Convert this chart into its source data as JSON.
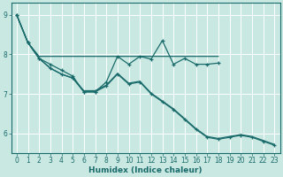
{
  "xlabel": "Humidex (Indice chaleur)",
  "xlim": [
    -0.5,
    23.5
  ],
  "ylim": [
    5.5,
    9.3
  ],
  "yticks": [
    6,
    7,
    8,
    9
  ],
  "xticks": [
    0,
    1,
    2,
    3,
    4,
    5,
    6,
    7,
    8,
    9,
    10,
    11,
    12,
    13,
    14,
    15,
    16,
    17,
    18,
    19,
    20,
    21,
    22,
    23
  ],
  "background_color": "#c9e8e2",
  "grid_color": "#ffffff",
  "line_color": "#1a6b6b",
  "line1_no_marker": {
    "x": [
      0,
      1,
      2,
      3,
      4,
      5,
      6,
      7,
      8,
      9,
      10,
      11,
      12,
      13,
      14,
      15,
      16,
      17,
      18
    ],
    "y": [
      9.0,
      8.3,
      7.95,
      7.95,
      7.95,
      7.95,
      7.95,
      7.95,
      7.95,
      7.95,
      7.95,
      7.95,
      7.95,
      7.95,
      7.95,
      7.95,
      7.95,
      7.95,
      7.95
    ]
  },
  "line2_wavy_marker": {
    "x": [
      0,
      1,
      2,
      3,
      4,
      5,
      6,
      7,
      8,
      9,
      10,
      11,
      12,
      13,
      14,
      15,
      16,
      17,
      18
    ],
    "y": [
      9.0,
      8.3,
      7.9,
      7.75,
      7.6,
      7.45,
      7.05,
      7.05,
      7.3,
      7.95,
      7.75,
      7.95,
      7.88,
      8.35,
      7.75,
      7.9,
      7.75,
      7.75,
      7.78
    ]
  },
  "line3_decline_marker": {
    "x": [
      0,
      1,
      2,
      3,
      4,
      5,
      6,
      7,
      8,
      9,
      10,
      11,
      12,
      13,
      14,
      15,
      16,
      17,
      18,
      19,
      20,
      21,
      22,
      23
    ],
    "y": [
      9.0,
      8.3,
      7.9,
      7.65,
      7.5,
      7.4,
      7.05,
      7.05,
      7.2,
      7.5,
      7.25,
      7.3,
      7.0,
      6.8,
      6.6,
      6.35,
      6.1,
      5.9,
      5.85,
      5.9,
      5.95,
      5.9,
      5.8,
      5.7
    ]
  },
  "line4_decline_no_marker": {
    "x": [
      0,
      1,
      2,
      3,
      4,
      5,
      6,
      7,
      8,
      9,
      10,
      11,
      12,
      13,
      14,
      15,
      16,
      17,
      18,
      19,
      20,
      21,
      22,
      23
    ],
    "y": [
      9.0,
      8.3,
      7.9,
      7.65,
      7.5,
      7.4,
      7.08,
      7.08,
      7.22,
      7.52,
      7.27,
      7.32,
      7.02,
      6.82,
      6.62,
      6.37,
      6.12,
      5.92,
      5.87,
      5.92,
      5.97,
      5.92,
      5.82,
      5.72
    ]
  }
}
